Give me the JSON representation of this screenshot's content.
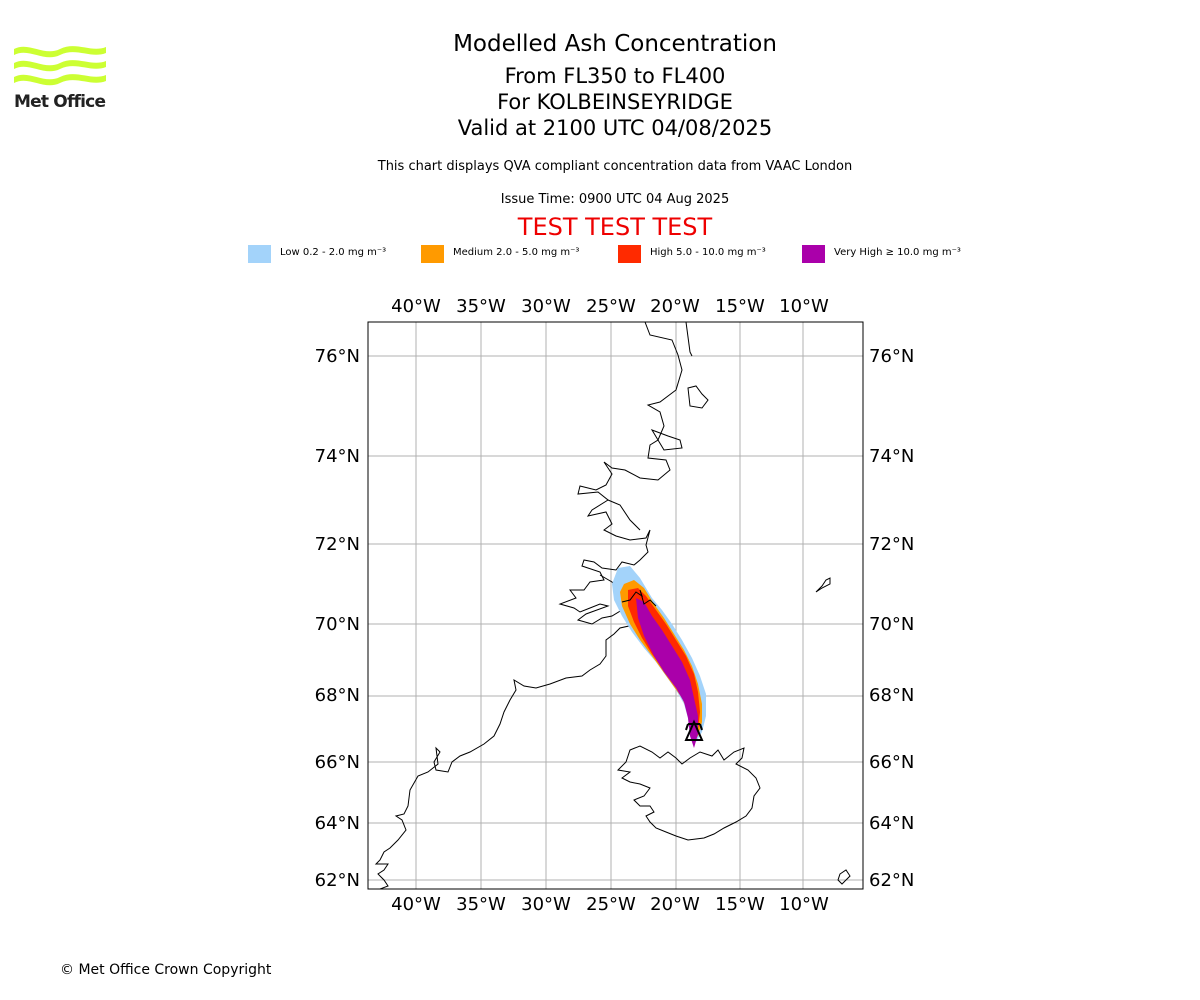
{
  "org": {
    "logo_text": "Met Office"
  },
  "title": {
    "main": "Modelled Ash Concentration",
    "levels": "From FL350 to FL400",
    "volcano": "For KOLBEINSEYRIDGE",
    "valid": "Valid at 2100 UTC 04/08/2025"
  },
  "subtitle": "This chart displays QVA compliant concentration data from VAAC London",
  "issue_time": "Issue Time: 0900 UTC 04 Aug 2025",
  "test_banner": "TEST TEST TEST",
  "legend": [
    {
      "label": "Low 0.2 - 2.0 mg m⁻³",
      "color": "#a3d3fa"
    },
    {
      "label": "Medium 2.0 - 5.0 mg m⁻³",
      "color": "#ff9a00"
    },
    {
      "label": "High 5.0 - 10.0 mg m⁻³",
      "color": "#ff2a00"
    },
    {
      "label": "Very High ≥ 10.0 mg m⁻³",
      "color": "#aa00aa"
    }
  ],
  "map": {
    "lon_labels": [
      "40°W",
      "35°W",
      "30°W",
      "25°W",
      "20°W",
      "15°W",
      "10°W"
    ],
    "lat_labels": [
      "76°N",
      "74°N",
      "72°N",
      "70°N",
      "68°N",
      "66°N",
      "64°N",
      "62°N"
    ],
    "volcano_marker": "volcano-icon"
  },
  "copyright": "© Met Office Crown Copyright"
}
